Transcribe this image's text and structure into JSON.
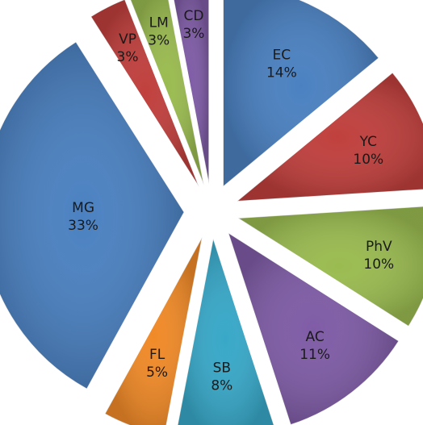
{
  "chart_data": {
    "type": "pie",
    "title": "",
    "slices": [
      {
        "label": "EC",
        "value": 14,
        "display": "14%",
        "color": "#4b81c1"
      },
      {
        "label": "YC",
        "value": 10,
        "display": "10%",
        "color": "#c0403d"
      },
      {
        "label": "PhV",
        "value": 10,
        "display": "10%",
        "color": "#9abb50"
      },
      {
        "label": "AC",
        "value": 11,
        "display": "11%",
        "color": "#7f5ca6"
      },
      {
        "label": "SB",
        "value": 8,
        "display": "8%",
        "color": "#38a8c8"
      },
      {
        "label": "FL",
        "value": 5,
        "display": "5%",
        "color": "#f08a28"
      },
      {
        "label": "MG",
        "value": 33,
        "display": "33%",
        "color": "#4b81c1"
      },
      {
        "label": "VP",
        "value": 3,
        "display": "3%",
        "color": "#c0403d"
      },
      {
        "label": "LM",
        "value": 3,
        "display": "3%",
        "color": "#9abb50"
      },
      {
        "label": "CD",
        "value": 3,
        "display": "3%",
        "color": "#7f5ca6"
      }
    ],
    "legend": "none"
  }
}
